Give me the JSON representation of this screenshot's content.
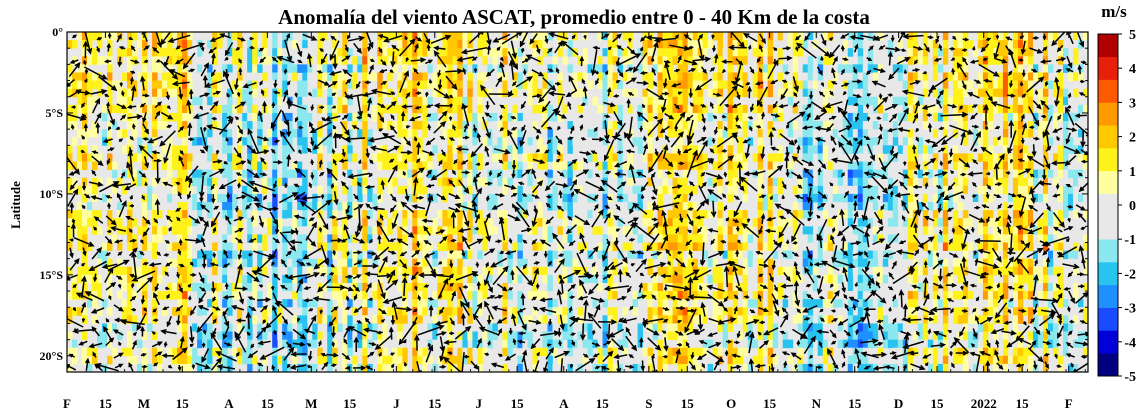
{
  "chart_data": {
    "type": "heatmap",
    "title": "Anomalía del viento ASCAT, promedio entre 0 - 40 Km de la costa",
    "ylabel": "Latitude",
    "xlabel": "",
    "y_ticks": [
      "0°",
      "5°S",
      "10°S",
      "15°S",
      "20°S"
    ],
    "y_tick_values": [
      0,
      -5,
      -10,
      -15,
      -20
    ],
    "ylim": [
      -21,
      0
    ],
    "x_ticks": [
      "F",
      "15",
      "M",
      "15",
      "A",
      "15",
      "M",
      "15",
      "J",
      "15",
      "J",
      "15",
      "A",
      "15",
      "S",
      "15",
      "O",
      "15",
      "N",
      "15",
      "D",
      "15",
      "2022",
      "15",
      "F"
    ],
    "x_tick_dates": [
      "2021-02-01",
      "2021-02-15",
      "2021-03-01",
      "2021-03-15",
      "2021-04-01",
      "2021-04-15",
      "2021-05-01",
      "2021-05-15",
      "2021-06-01",
      "2021-06-15",
      "2021-07-01",
      "2021-07-15",
      "2021-08-01",
      "2021-08-15",
      "2021-09-01",
      "2021-09-15",
      "2021-10-01",
      "2021-10-15",
      "2021-11-01",
      "2021-11-15",
      "2021-12-01",
      "2021-12-15",
      "2022-01-01",
      "2022-01-15",
      "2022-02-01"
    ],
    "xlim": [
      "2021-02-01",
      "2022-02-08"
    ],
    "colorbar": {
      "unit": "m/s",
      "ticks": [
        "5",
        "4",
        "3",
        "2",
        "1",
        "0",
        "-1",
        "-2",
        "-3",
        "-4",
        "-5"
      ],
      "range": [
        -5,
        5
      ],
      "colors": [
        "#000080",
        "#0000d8",
        "#1a4cff",
        "#1e90ff",
        "#29c3f0",
        "#8ce8ef",
        "#e8e8e8",
        "#e8e8e8",
        "#ffffa0",
        "#fff21a",
        "#ffc800",
        "#ff9a00",
        "#ff5a00",
        "#e8200a",
        "#b00000"
      ]
    },
    "grid": false,
    "legend": "colorbar-right",
    "vectors": "wind-anomaly-arrows"
  }
}
